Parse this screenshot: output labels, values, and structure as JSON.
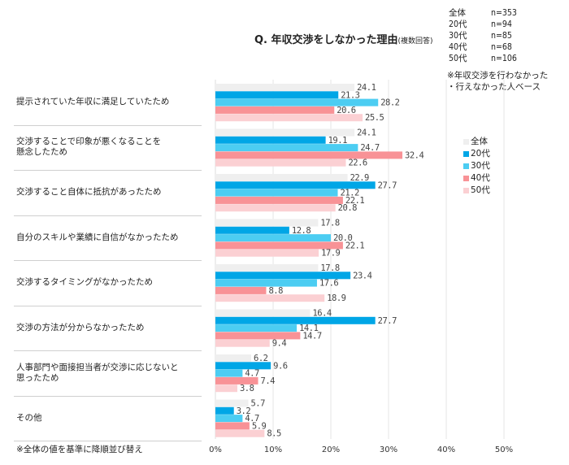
{
  "header": {
    "title": "Q. 年収交渉をしなかった理由",
    "title_sub": "(複数回答)"
  },
  "sample_sizes": [
    {
      "group": "全体",
      "n": "n=353"
    },
    {
      "group": "20代",
      "n": "n=94"
    },
    {
      "group": "30代",
      "n": "n=85"
    },
    {
      "group": "40代",
      "n": "n=68"
    },
    {
      "group": "50代",
      "n": "n=106"
    }
  ],
  "base_note": [
    "※年収交渉を行わなかった",
    "・行えなかった人ベース"
  ],
  "footnote": "※全体の値を基準に降順並び替え",
  "chart_data": {
    "type": "bar",
    "orientation": "horizontal",
    "title": "Q. 年収交渉をしなかった理由(複数回答)",
    "xlabel": "",
    "ylabel": "",
    "xlim": [
      0,
      50
    ],
    "x_ticks": [
      "0%",
      "10%",
      "20%",
      "30%",
      "40%",
      "50%"
    ],
    "grid": true,
    "legend_position": "right",
    "categories": [
      "提示されていた年収に満足していたため",
      "交渉することで印象が悪くなることを懸念したため",
      "交渉すること自体に抵抗があったため",
      "自分のスキルや業績に自信がなかったため",
      "交渉するタイミングがなかったため",
      "交渉の方法が分からなかったため",
      "人事部門や面接担当者が交渉に応じないと思ったため",
      "その他"
    ],
    "category_lines": [
      [
        "提示されていた年収に満足していたため"
      ],
      [
        "交渉することで印象が悪くなることを",
        "懸念したため"
      ],
      [
        "交渉すること自体に抵抗があったため"
      ],
      [
        "自分のスキルや業績に自信がなかったため"
      ],
      [
        "交渉するタイミングがなかったため"
      ],
      [
        "交渉の方法が分からなかったため"
      ],
      [
        "人事部門や面接担当者が交渉に応じないと",
        "思ったため"
      ],
      [
        "その他"
      ]
    ],
    "series": [
      {
        "name": "全体",
        "color": "#efefef",
        "values": [
          24.1,
          24.1,
          22.9,
          17.8,
          17.8,
          16.4,
          6.2,
          5.7
        ]
      },
      {
        "name": "20代",
        "color": "#00a6e6",
        "values": [
          21.3,
          19.1,
          27.7,
          12.8,
          23.4,
          27.7,
          9.6,
          3.2
        ]
      },
      {
        "name": "30代",
        "color": "#4ccdf2",
        "values": [
          28.2,
          24.7,
          21.2,
          20.0,
          17.6,
          14.1,
          4.7,
          4.7
        ]
      },
      {
        "name": "40代",
        "color": "#f89296",
        "values": [
          20.6,
          32.4,
          22.1,
          22.1,
          8.8,
          14.7,
          7.4,
          5.9
        ]
      },
      {
        "name": "50代",
        "color": "#fbd0d3",
        "values": [
          25.5,
          22.6,
          20.8,
          17.9,
          18.9,
          9.4,
          3.8,
          8.5
        ]
      }
    ]
  }
}
